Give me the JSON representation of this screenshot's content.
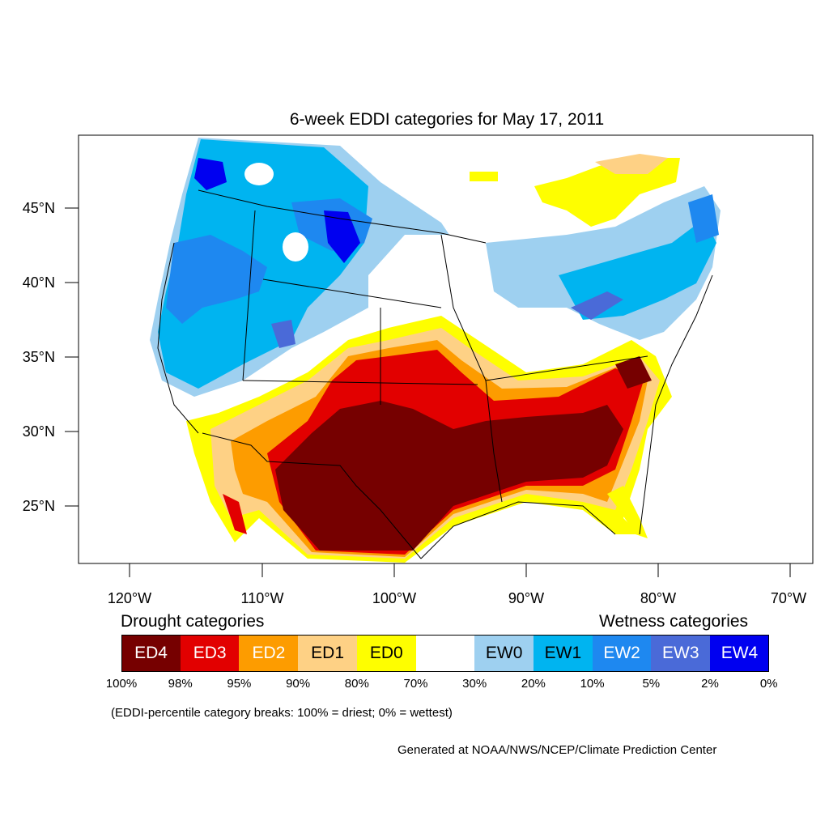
{
  "title": "6-week EDDI categories for May 17, 2011",
  "axes": {
    "lat_labels": [
      "45°N",
      "40°N",
      "35°N",
      "30°N",
      "25°N"
    ],
    "lon_labels": [
      "120°W",
      "110°W",
      "100°W",
      "90°W",
      "80°W",
      "70°W"
    ]
  },
  "legend": {
    "drought_header": "Drought categories",
    "wetness_header": "Wetness categories",
    "categories": [
      {
        "label": "ED4",
        "color": "#760000",
        "text_color": "#ffffff"
      },
      {
        "label": "ED3",
        "color": "#e20000",
        "text_color": "#ffffff"
      },
      {
        "label": "ED2",
        "color": "#fd9c00",
        "text_color": "#ffffff"
      },
      {
        "label": "ED1",
        "color": "#fed185",
        "text_color": "#000000"
      },
      {
        "label": "ED0",
        "color": "#fefe00",
        "text_color": "#000000"
      },
      {
        "label": "",
        "color": "#ffffff",
        "text_color": "#000000"
      },
      {
        "label": "EW0",
        "color": "#9ed0f0",
        "text_color": "#000000"
      },
      {
        "label": "EW1",
        "color": "#00b4f0",
        "text_color": "#000000"
      },
      {
        "label": "EW2",
        "color": "#1e88f0",
        "text_color": "#ffffff"
      },
      {
        "label": "EW3",
        "color": "#4a6ad8",
        "text_color": "#ffffff"
      },
      {
        "label": "EW4",
        "color": "#0000f0",
        "text_color": "#ffffff"
      }
    ],
    "breaks": [
      "100%",
      "98%",
      "95%",
      "90%",
      "80%",
      "70%",
      "30%",
      "20%",
      "10%",
      "5%",
      "2%",
      "0%"
    ],
    "note": "(EDDI-percentile category breaks: 100% = driest; 0% = wettest)"
  },
  "credit": "Generated at NOAA/NWS/NCEP/Climate Prediction Center"
}
